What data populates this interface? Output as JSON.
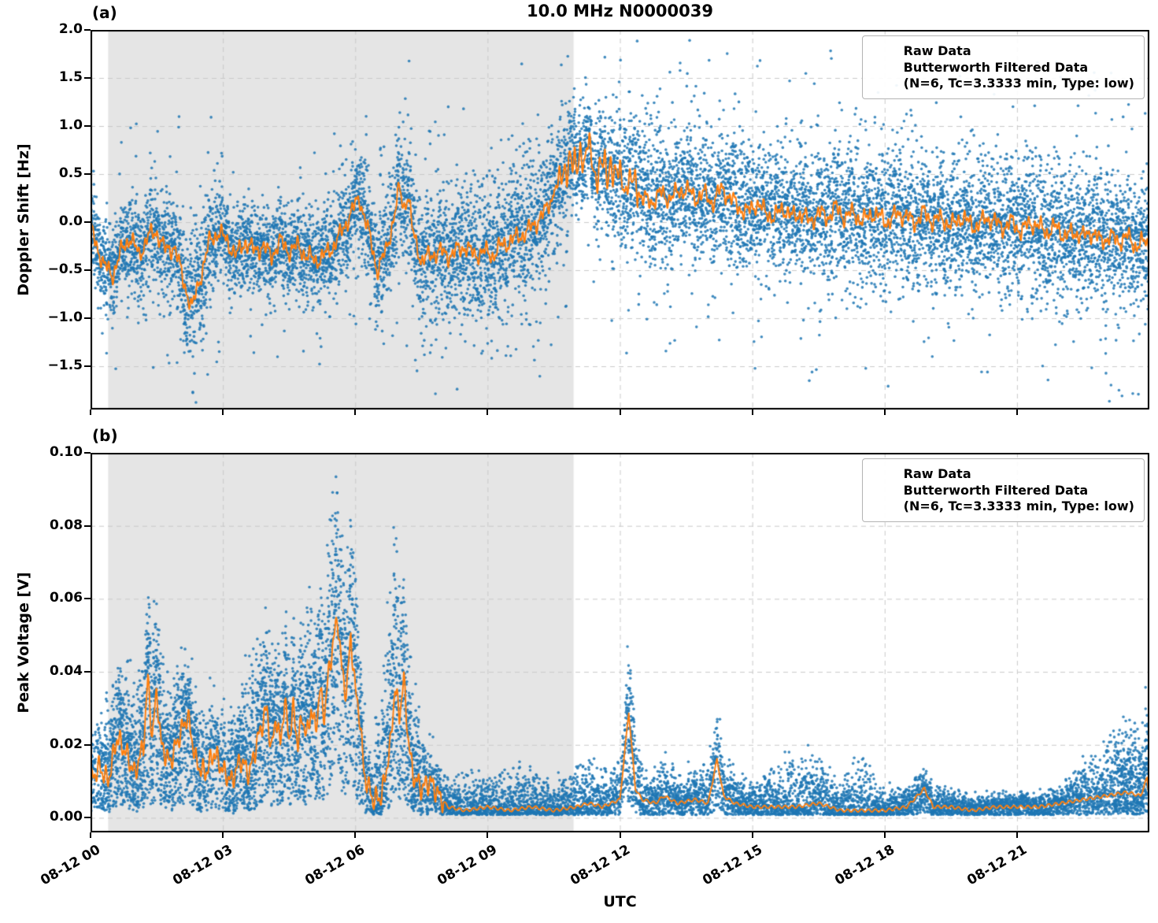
{
  "figure": {
    "title": "10.0 MHz N0000039",
    "xlabel": "UTC",
    "colors": {
      "raw": "#1f77b4",
      "filtered": "#ff7f0e",
      "shade": "#e5e5e5",
      "grid": "#c9c9c9",
      "frame": "#000000"
    },
    "x_axis": {
      "range_hours": [
        0,
        24
      ],
      "tick_hours": [
        0,
        3,
        6,
        9,
        12,
        15,
        18,
        21
      ],
      "tick_labels": [
        "08-12 00",
        "08-12 03",
        "08-12 06",
        "08-12 09",
        "08-12 12",
        "08-12 15",
        "08-12 18",
        "08-12 21"
      ]
    },
    "shaded_region_hours": [
      0.4,
      10.95
    ]
  },
  "chart_data": [
    {
      "id": "doppler",
      "type": "scatter+line",
      "panel_label": "(a)",
      "ylabel": "Doppler Shift [Hz]",
      "ylim": [
        -1.95,
        2.0
      ],
      "ytick_values": [
        2.0,
        1.5,
        1.0,
        0.5,
        0.0,
        -0.5,
        -1.0,
        -1.5
      ],
      "ytick_labels": [
        "2.0",
        "1.5",
        "1.0",
        "0.5",
        "0.0",
        "−0.5",
        "−1.0",
        "−1.5"
      ],
      "legend": {
        "raw": "Raw Data",
        "filtered": "Butterworth Filtered Data",
        "filtered_params": "(N=6, Tc=3.3333 min, Type: low)"
      },
      "filtered_series": {
        "t_hours": [
          0,
          0.3,
          0.5,
          0.7,
          0.9,
          1.1,
          1.3,
          1.5,
          1.7,
          1.9,
          2.1,
          2.3,
          2.5,
          2.7,
          2.9,
          3.1,
          3.3,
          3.5,
          3.7,
          3.9,
          4.1,
          4.3,
          4.5,
          4.7,
          4.9,
          5.1,
          5.3,
          5.5,
          5.7,
          5.9,
          6.1,
          6.3,
          6.5,
          6.7,
          6.9,
          7.0,
          7.1,
          7.2,
          7.3,
          7.5,
          7.7,
          7.9,
          8.1,
          8.3,
          8.5,
          8.7,
          8.9,
          9.1,
          9.3,
          9.5,
          9.7,
          9.9,
          10.1,
          10.3,
          10.5,
          10.7,
          10.9,
          11.0,
          11.1,
          11.2,
          11.3,
          11.4,
          11.5,
          11.6,
          11.7,
          11.8,
          11.9,
          12.0,
          12.1,
          12.3,
          12.5,
          12.7,
          12.9,
          13.1,
          13.3,
          13.5,
          13.7,
          13.9,
          14.1,
          14.3,
          14.5,
          14.7,
          14.9,
          15.1,
          15.3,
          15.5,
          15.7,
          15.9,
          16.1,
          16.3,
          16.5,
          16.7,
          16.9,
          17.1,
          17.3,
          17.5,
          17.7,
          17.9,
          18.1,
          18.3,
          18.5,
          18.7,
          18.9,
          19.1,
          19.3,
          19.5,
          19.7,
          19.9,
          20.1,
          20.3,
          20.5,
          20.7,
          20.9,
          21.1,
          21.3,
          21.5,
          21.7,
          21.9,
          22.1,
          22.3,
          22.5,
          22.7,
          22.9,
          23.1,
          23.3,
          23.5,
          23.7,
          23.9,
          24
        ],
        "values": [
          -0.05,
          -0.45,
          -0.55,
          -0.3,
          -0.15,
          -0.35,
          -0.15,
          -0.1,
          -0.3,
          -0.25,
          -0.6,
          -0.9,
          -0.55,
          -0.2,
          -0.1,
          -0.2,
          -0.35,
          -0.2,
          -0.3,
          -0.25,
          -0.35,
          -0.2,
          -0.3,
          -0.25,
          -0.35,
          -0.4,
          -0.35,
          -0.25,
          -0.1,
          0.1,
          0.25,
          -0.1,
          -0.5,
          -0.3,
          0.1,
          0.35,
          0.15,
          0.3,
          -0.1,
          -0.4,
          -0.35,
          -0.3,
          -0.35,
          -0.3,
          -0.25,
          -0.35,
          -0.3,
          -0.35,
          -0.25,
          -0.2,
          -0.15,
          -0.1,
          0.0,
          0.1,
          0.3,
          0.5,
          0.65,
          0.55,
          0.75,
          0.6,
          0.85,
          0.55,
          0.45,
          0.65,
          0.5,
          0.6,
          0.45,
          0.55,
          0.35,
          0.45,
          0.25,
          0.2,
          0.3,
          0.25,
          0.3,
          0.35,
          0.25,
          0.3,
          0.2,
          0.35,
          0.25,
          0.15,
          0.1,
          0.2,
          0.1,
          0.05,
          0.15,
          0.05,
          0.1,
          0.0,
          0.1,
          0.05,
          0.15,
          0.05,
          0.1,
          0.0,
          0.1,
          0.05,
          0.0,
          0.1,
          0.05,
          0.0,
          0.1,
          0.0,
          0.05,
          -0.05,
          0.05,
          0.0,
          -0.05,
          0.05,
          0.0,
          -0.05,
          0.0,
          -0.1,
          0.0,
          -0.05,
          -0.1,
          -0.05,
          -0.15,
          -0.1,
          -0.15,
          -0.1,
          -0.2,
          -0.15,
          -0.2,
          -0.15,
          -0.25,
          -0.2,
          -0.25
        ]
      },
      "raw_scatter": {
        "spread_t_hours": [
          0,
          1,
          2,
          2.3,
          3,
          4,
          5,
          6,
          7,
          8,
          9,
          10,
          10.8,
          11.5,
          12,
          13,
          14,
          16,
          18,
          20,
          22,
          24
        ],
        "spread_sigma": [
          0.25,
          0.3,
          0.35,
          0.45,
          0.27,
          0.25,
          0.28,
          0.33,
          0.35,
          0.4,
          0.45,
          0.42,
          0.35,
          0.3,
          0.45,
          0.42,
          0.38,
          0.4,
          0.42,
          0.38,
          0.42,
          0.38
        ]
      }
    },
    {
      "id": "voltage",
      "type": "scatter+line",
      "panel_label": "(b)",
      "ylabel": "Peak Voltage [V]",
      "ylim": [
        -0.004,
        0.1
      ],
      "ytick_values": [
        0.1,
        0.08,
        0.06,
        0.04,
        0.02,
        0.0
      ],
      "ytick_labels": [
        "0.10",
        "0.08",
        "0.06",
        "0.04",
        "0.02",
        "0.00"
      ],
      "legend": {
        "raw": "Raw Data",
        "filtered": "Butterworth Filtered Data",
        "filtered_params": "(N=6, Tc=3.3333 min, Type: low)"
      },
      "filtered_series": {
        "t_hours": [
          0,
          0.2,
          0.4,
          0.6,
          0.8,
          1.0,
          1.2,
          1.3,
          1.4,
          1.5,
          1.6,
          1.8,
          2.0,
          2.2,
          2.4,
          2.6,
          2.8,
          3.0,
          3.2,
          3.4,
          3.6,
          3.8,
          4.0,
          4.1,
          4.2,
          4.3,
          4.4,
          4.5,
          4.6,
          4.7,
          4.8,
          4.9,
          5.0,
          5.1,
          5.2,
          5.3,
          5.4,
          5.5,
          5.6,
          5.7,
          5.8,
          5.9,
          6.0,
          6.1,
          6.2,
          6.4,
          6.6,
          6.8,
          6.9,
          7.0,
          7.1,
          7.2,
          7.3,
          7.5,
          7.7,
          7.9,
          8.1,
          8.5,
          9.0,
          9.5,
          10.0,
          10.5,
          11.0,
          11.3,
          11.6,
          12.0,
          12.2,
          12.35,
          12.5,
          12.8,
          13.0,
          13.3,
          13.7,
          14.0,
          14.2,
          14.35,
          14.6,
          15.0,
          15.5,
          16.0,
          16.5,
          17.0,
          17.5,
          18.0,
          18.5,
          18.9,
          19.1,
          19.5,
          20.0,
          20.5,
          21.0,
          21.5,
          22.0,
          22.5,
          23.0,
          23.5,
          23.8,
          23.95,
          24
        ],
        "values": [
          0.01,
          0.014,
          0.01,
          0.022,
          0.018,
          0.012,
          0.02,
          0.038,
          0.022,
          0.035,
          0.02,
          0.015,
          0.022,
          0.028,
          0.015,
          0.012,
          0.018,
          0.013,
          0.01,
          0.016,
          0.012,
          0.022,
          0.03,
          0.018,
          0.028,
          0.02,
          0.032,
          0.022,
          0.03,
          0.02,
          0.028,
          0.022,
          0.03,
          0.024,
          0.035,
          0.028,
          0.04,
          0.048,
          0.055,
          0.04,
          0.034,
          0.05,
          0.035,
          0.028,
          0.012,
          0.005,
          0.006,
          0.02,
          0.036,
          0.028,
          0.038,
          0.022,
          0.012,
          0.008,
          0.01,
          0.006,
          0.003,
          0.002,
          0.003,
          0.002,
          0.003,
          0.002,
          0.003,
          0.004,
          0.003,
          0.005,
          0.029,
          0.008,
          0.005,
          0.004,
          0.006,
          0.004,
          0.005,
          0.004,
          0.016,
          0.006,
          0.004,
          0.003,
          0.003,
          0.003,
          0.004,
          0.002,
          0.002,
          0.002,
          0.003,
          0.008,
          0.003,
          0.003,
          0.002,
          0.003,
          0.003,
          0.003,
          0.004,
          0.005,
          0.006,
          0.007,
          0.006,
          0.011,
          0.005
        ]
      },
      "raw_scatter": {
        "spread_t_hours": [
          0,
          0.7,
          1.3,
          2,
          3,
          3.8,
          4.3,
          5,
          5.5,
          6,
          6.3,
          6.9,
          7.2,
          7.6,
          8,
          8.5,
          9,
          9.7,
          10.5,
          11.3,
          12,
          12.2,
          12.6,
          13,
          13.5,
          14.2,
          15,
          15.8,
          16.3,
          17,
          17.5,
          18,
          18.9,
          19.5,
          20,
          21,
          22,
          22.7,
          23.2,
          23.6,
          24
        ],
        "spread_up": [
          0.016,
          0.022,
          0.028,
          0.02,
          0.016,
          0.03,
          0.026,
          0.03,
          0.042,
          0.03,
          0.01,
          0.045,
          0.03,
          0.012,
          0.008,
          0.01,
          0.008,
          0.012,
          0.008,
          0.012,
          0.01,
          0.022,
          0.008,
          0.01,
          0.008,
          0.012,
          0.006,
          0.014,
          0.015,
          0.008,
          0.016,
          0.005,
          0.006,
          0.005,
          0.004,
          0.004,
          0.005,
          0.013,
          0.018,
          0.02,
          0.02
        ]
      }
    }
  ]
}
